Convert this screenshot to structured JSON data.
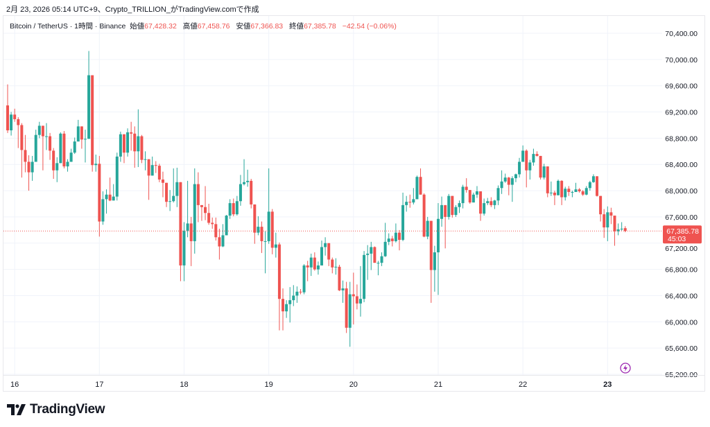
{
  "caption": "2月 23, 2026 05:14 UTC+9、Crypto_TRILLION_がTradingView.comで作成",
  "legend": {
    "symbol": "Bitcoin / TetherUS · 1時間 · Binance",
    "open_label": "始値",
    "open": "67,428.32",
    "high_label": "高値",
    "high": "67,458.76",
    "low_label": "安値",
    "low": "67,366.83",
    "close_label": "終値",
    "close": "67,385.78",
    "change": "−42.54 (−0.06%)"
  },
  "last_price": {
    "label": "67,385.78",
    "countdown": "45:03",
    "value": 67385.78
  },
  "logo": "TradingView",
  "colors": {
    "up": "#26a69a",
    "down": "#ef5350",
    "grid": "#f0f3fa",
    "realtime_icon": "#9c27b0"
  },
  "icons": [
    "lightning-icon",
    "tradingview-logo-icon"
  ],
  "chart_data": {
    "type": "candlestick",
    "title": "Bitcoin / TetherUS · 1時間 · Binance",
    "ylim": [
      65200,
      70400
    ],
    "y_ticks": [
      "70,400.00",
      "70,000.00",
      "69,600.00",
      "69,200.00",
      "68,800.00",
      "68,400.00",
      "68,000.00",
      "67,600.00",
      "67,200.00",
      "66,800.00",
      "66,400.00",
      "66,000.00",
      "65,600.00",
      "65,200.00"
    ],
    "x_ticks": [
      {
        "label": "16",
        "candle": 3
      },
      {
        "label": "17",
        "candle": 27
      },
      {
        "label": "18",
        "candle": 51
      },
      {
        "label": "19",
        "candle": 75
      },
      {
        "label": "20",
        "candle": 99
      },
      {
        "label": "21",
        "candle": 123
      },
      {
        "label": "22",
        "candle": 147
      },
      {
        "label": "23",
        "candle": 171,
        "bold": true
      }
    ],
    "grid": true,
    "candles_ohlc": [
      [
        69300,
        69620,
        68880,
        68920
      ],
      [
        68920,
        69200,
        68840,
        69160
      ],
      [
        69160,
        69250,
        69050,
        69090
      ],
      [
        69090,
        69120,
        68650,
        69000
      ],
      [
        69000,
        69030,
        68200,
        68620
      ],
      [
        68620,
        68850,
        68280,
        68440
      ],
      [
        68440,
        68540,
        68000,
        68280
      ],
      [
        68280,
        68530,
        68150,
        68440
      ],
      [
        68440,
        68930,
        68440,
        68850
      ],
      [
        68850,
        69050,
        68800,
        68990
      ],
      [
        68990,
        68990,
        68310,
        68830
      ],
      [
        68830,
        69030,
        68620,
        68830
      ],
      [
        68830,
        68880,
        68470,
        68610
      ],
      [
        68610,
        68650,
        68180,
        68310
      ],
      [
        68310,
        68510,
        68130,
        68420
      ],
      [
        68420,
        68890,
        68420,
        68870
      ],
      [
        68870,
        68910,
        68340,
        68370
      ],
      [
        68370,
        68480,
        68290,
        68440
      ],
      [
        68440,
        68640,
        68440,
        68580
      ],
      [
        68580,
        68810,
        68560,
        68750
      ],
      [
        68750,
        69080,
        68750,
        68980
      ],
      [
        68980,
        68980,
        68640,
        68780
      ],
      [
        68780,
        68930,
        68430,
        68790
      ],
      [
        68790,
        70130,
        68790,
        69760
      ],
      [
        69760,
        69760,
        68290,
        68390
      ],
      [
        68390,
        68550,
        68290,
        68410
      ],
      [
        68410,
        68530,
        67300,
        67530
      ],
      [
        67530,
        67990,
        67480,
        67870
      ],
      [
        67870,
        68020,
        67650,
        67940
      ],
      [
        67940,
        68200,
        67840,
        67850
      ],
      [
        67850,
        68100,
        67850,
        67910
      ],
      [
        67910,
        68580,
        67850,
        68520
      ],
      [
        68520,
        68900,
        68440,
        68860
      ],
      [
        68860,
        68860,
        68420,
        68580
      ],
      [
        68580,
        68950,
        68520,
        68890
      ],
      [
        68890,
        69050,
        68610,
        68870
      ],
      [
        68870,
        68980,
        68350,
        68600
      ],
      [
        68600,
        69240,
        68360,
        68830
      ],
      [
        68830,
        68850,
        68420,
        68470
      ],
      [
        68480,
        68600,
        68310,
        68480
      ],
      [
        68480,
        68480,
        67860,
        68230
      ],
      [
        68230,
        68520,
        68230,
        68390
      ],
      [
        68390,
        68450,
        68270,
        68380
      ],
      [
        68380,
        68410,
        68130,
        68170
      ],
      [
        68170,
        68290,
        67900,
        68120
      ],
      [
        68120,
        68120,
        67750,
        67830
      ],
      [
        67830,
        68010,
        67690,
        67840
      ],
      [
        67840,
        68340,
        67820,
        67920
      ],
      [
        67920,
        68350,
        67750,
        68130
      ],
      [
        68130,
        68130,
        66620,
        66860
      ],
      [
        66860,
        67520,
        66620,
        67390
      ],
      [
        67390,
        68150,
        67290,
        67500
      ],
      [
        67500,
        67600,
        66850,
        67230
      ],
      [
        67230,
        68340,
        67040,
        68100
      ],
      [
        68100,
        68280,
        67520,
        67780
      ],
      [
        67780,
        67780,
        67540,
        67750
      ],
      [
        67750,
        68070,
        67550,
        67660
      ],
      [
        67660,
        67800,
        67480,
        67510
      ],
      [
        67510,
        67590,
        67420,
        67490
      ],
      [
        67490,
        67590,
        67240,
        67290
      ],
      [
        67290,
        67420,
        66950,
        67150
      ],
      [
        67150,
        67490,
        67140,
        67320
      ],
      [
        67320,
        67630,
        67320,
        67620
      ],
      [
        67620,
        67870,
        67570,
        67810
      ],
      [
        67810,
        67880,
        67610,
        67640
      ],
      [
        67640,
        67920,
        67620,
        67840
      ],
      [
        67840,
        68240,
        67770,
        68100
      ],
      [
        68100,
        68480,
        68080,
        68130
      ],
      [
        68130,
        68320,
        68060,
        68150
      ],
      [
        68150,
        68180,
        67730,
        67790
      ],
      [
        67790,
        67790,
        67190,
        67360
      ],
      [
        67360,
        67610,
        67320,
        67450
      ],
      [
        67450,
        67530,
        67050,
        67230
      ],
      [
        67230,
        67380,
        66740,
        67230
      ],
      [
        67230,
        68340,
        67190,
        67680
      ],
      [
        67680,
        67720,
        67030,
        67130
      ],
      [
        67130,
        67360,
        66980,
        67180
      ],
      [
        67180,
        67210,
        65870,
        66350
      ],
      [
        66350,
        66510,
        65870,
        66160
      ],
      [
        66160,
        66330,
        66060,
        66270
      ],
      [
        66270,
        66530,
        65990,
        66330
      ],
      [
        66330,
        66560,
        66240,
        66400
      ],
      [
        66400,
        66540,
        66290,
        66460
      ],
      [
        66460,
        66500,
        66420,
        66450
      ],
      [
        66450,
        66880,
        66420,
        66860
      ],
      [
        66860,
        66930,
        66620,
        66830
      ],
      [
        66830,
        67040,
        66700,
        66980
      ],
      [
        66980,
        67060,
        66780,
        66800
      ],
      [
        66800,
        66920,
        66720,
        66860
      ],
      [
        66860,
        67240,
        66860,
        67140
      ],
      [
        67140,
        67290,
        67010,
        67200
      ],
      [
        67200,
        67200,
        66850,
        66950
      ],
      [
        66950,
        66980,
        66740,
        66830
      ],
      [
        66830,
        66970,
        66720,
        66840
      ],
      [
        66840,
        66870,
        66470,
        66480
      ],
      [
        66480,
        66630,
        66290,
        66510
      ],
      [
        66510,
        66610,
        65830,
        65910
      ],
      [
        65910,
        66610,
        65620,
        66420
      ],
      [
        66420,
        66750,
        65960,
        66390
      ],
      [
        66390,
        66570,
        66190,
        66280
      ],
      [
        66280,
        66850,
        66080,
        66350
      ],
      [
        66350,
        67080,
        66300,
        67020
      ],
      [
        67020,
        67170,
        66640,
        67040
      ],
      [
        67040,
        67220,
        66790,
        67140
      ],
      [
        67140,
        67150,
        66900,
        66900
      ],
      [
        66900,
        66930,
        66710,
        66900
      ],
      [
        66900,
        67060,
        66850,
        67000
      ],
      [
        67000,
        67510,
        66990,
        67220
      ],
      [
        67220,
        67350,
        67170,
        67270
      ],
      [
        67270,
        67310,
        67150,
        67230
      ],
      [
        67230,
        67500,
        67210,
        67360
      ],
      [
        67360,
        67400,
        67090,
        67250
      ],
      [
        67250,
        67970,
        67230,
        67780
      ],
      [
        67780,
        67920,
        67680,
        67830
      ],
      [
        67830,
        67940,
        67740,
        67820
      ],
      [
        67820,
        68040,
        67790,
        67870
      ],
      [
        67870,
        68230,
        67870,
        68210
      ],
      [
        68210,
        68340,
        67940,
        67940
      ],
      [
        67940,
        67960,
        67290,
        67300
      ],
      [
        67300,
        67600,
        67260,
        67540
      ],
      [
        67540,
        67540,
        66290,
        66790
      ],
      [
        66790,
        67160,
        66460,
        67060
      ],
      [
        67060,
        67810,
        66410,
        67570
      ],
      [
        67570,
        67910,
        67450,
        67780
      ],
      [
        67780,
        67780,
        67120,
        67600
      ],
      [
        67600,
        67950,
        67560,
        67920
      ],
      [
        67920,
        67920,
        67590,
        67630
      ],
      [
        67630,
        67780,
        67600,
        67750
      ],
      [
        67750,
        67850,
        67660,
        67810
      ],
      [
        67810,
        68090,
        67730,
        68060
      ],
      [
        68060,
        68190,
        67970,
        68010
      ],
      [
        68010,
        68010,
        67800,
        67820
      ],
      [
        67820,
        67970,
        67820,
        67940
      ],
      [
        67940,
        68070,
        67890,
        67990
      ],
      [
        67990,
        67990,
        67540,
        67650
      ],
      [
        67650,
        67880,
        67620,
        67810
      ],
      [
        67810,
        67890,
        67780,
        67840
      ],
      [
        67840,
        67900,
        67750,
        67780
      ],
      [
        67780,
        67860,
        67720,
        67850
      ],
      [
        67850,
        68080,
        67780,
        68040
      ],
      [
        68040,
        68310,
        67950,
        68140
      ],
      [
        68140,
        68260,
        68120,
        68200
      ],
      [
        68200,
        68210,
        67930,
        68090
      ],
      [
        68090,
        68220,
        67830,
        68190
      ],
      [
        68190,
        68260,
        68130,
        68250
      ],
      [
        68250,
        68500,
        68200,
        68440
      ],
      [
        68440,
        68690,
        68440,
        68610
      ],
      [
        68610,
        68630,
        68050,
        68310
      ],
      [
        68310,
        68470,
        68170,
        68430
      ],
      [
        68430,
        68640,
        68380,
        68560
      ],
      [
        68560,
        68600,
        68520,
        68530
      ],
      [
        68530,
        68530,
        68170,
        68200
      ],
      [
        68200,
        68410,
        68170,
        68370
      ],
      [
        68370,
        68370,
        67900,
        67960
      ],
      [
        67960,
        68140,
        67920,
        67970
      ],
      [
        67970,
        68000,
        67780,
        67930
      ],
      [
        67930,
        68170,
        67930,
        68150
      ],
      [
        68150,
        68160,
        67780,
        67900
      ],
      [
        67900,
        68060,
        67850,
        68030
      ],
      [
        68030,
        68070,
        67920,
        67980
      ],
      [
        67980,
        68000,
        67900,
        67980
      ],
      [
        67980,
        68120,
        67980,
        68020
      ],
      [
        68020,
        68040,
        67970,
        67990
      ],
      [
        67990,
        68010,
        67920,
        67940
      ],
      [
        67940,
        68070,
        67930,
        68040
      ],
      [
        68040,
        68150,
        68000,
        68130
      ],
      [
        68130,
        68250,
        68120,
        68220
      ],
      [
        68220,
        68220,
        67910,
        67920
      ],
      [
        67920,
        67920,
        67530,
        67640
      ],
      [
        67640,
        67720,
        67280,
        67440
      ],
      [
        67440,
        67760,
        67230,
        67670
      ],
      [
        67670,
        67740,
        67490,
        67620
      ],
      [
        67620,
        67620,
        67160,
        67380
      ],
      [
        67380,
        67500,
        67320,
        67410
      ],
      [
        67410,
        67520,
        67390,
        67420
      ],
      [
        67428.32,
        67458.76,
        67366.83,
        67385.78
      ]
    ]
  }
}
